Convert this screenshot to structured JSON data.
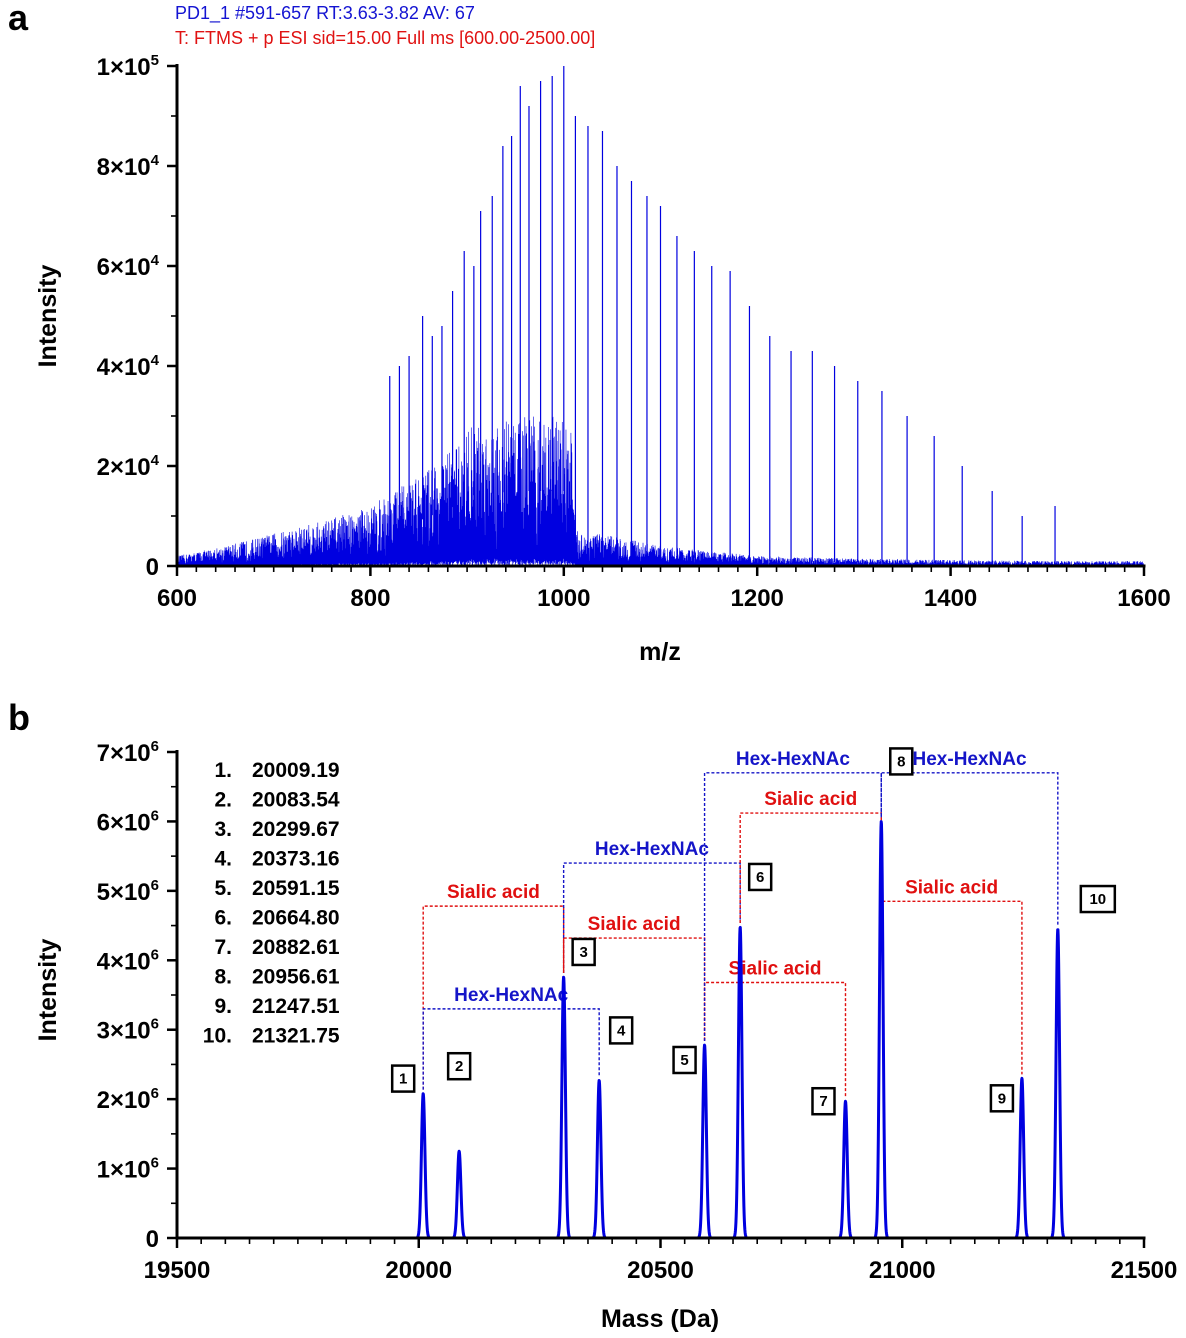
{
  "figure": {
    "panel_a_letter": "a",
    "panel_b_letter": "b"
  },
  "colors": {
    "series": "#0000e0",
    "annotation_red": "#e01010",
    "annotation_blue": "#1515c8",
    "header_blue": "#1414d2",
    "header_red": "#e01212"
  },
  "chart_data": [
    {
      "id": "panel_a",
      "type": "line",
      "header_line1": "PD1_1 #591-657 RT:3.63-3.82 AV: 67",
      "header_line2": "T: FTMS + p ESI sid=15.00 Full ms [600.00-2500.00]",
      "xlabel": "m/z",
      "ylabel": "Intensity",
      "xlim": [
        600,
        1600
      ],
      "ylim": [
        0,
        100000
      ],
      "x_ticks": [
        600,
        800,
        1000,
        1200,
        1400,
        1600
      ],
      "x_tick_labels": [
        "600",
        "800",
        "1000",
        "1200",
        "1400",
        "1600"
      ],
      "y_ticks": [
        0,
        20000,
        40000,
        60000,
        80000,
        100000
      ],
      "y_tick_mantissa": [
        "0",
        "2×10",
        "4×10",
        "6×10",
        "8×10",
        "1×10"
      ],
      "y_tick_exponent": [
        "",
        "4",
        "4",
        "4",
        "4",
        "5"
      ],
      "series": [
        {
          "name": "mass spectrum",
          "baseline_envelope": [
            [
              600,
              2000
            ],
            [
              650,
              4000
            ],
            [
              700,
              6500
            ],
            [
              750,
              9000
            ],
            [
              800,
              12000
            ],
            [
              850,
              18000
            ],
            [
              880,
              23000
            ],
            [
              898,
              25000
            ],
            [
              900,
              28000
            ],
            [
              950,
              30000
            ],
            [
              1000,
              30000
            ],
            [
              1008,
              28000
            ],
            [
              1012,
              7000
            ],
            [
              1050,
              6000
            ],
            [
              1100,
              4000
            ],
            [
              1150,
              3000
            ],
            [
              1200,
              2000
            ],
            [
              1300,
              1500
            ],
            [
              1400,
              1200
            ],
            [
              1500,
              1000
            ],
            [
              1600,
              1000
            ]
          ],
          "peaks": [
            [
              820,
              38000
            ],
            [
              830,
              40000
            ],
            [
              840,
              42000
            ],
            [
              854,
              50000
            ],
            [
              864,
              46000
            ],
            [
              874,
              48000
            ],
            [
              885,
              55000
            ],
            [
              897,
              63000
            ],
            [
              907,
              60000
            ],
            [
              914,
              71000
            ],
            [
              926,
              74000
            ],
            [
              937,
              84000
            ],
            [
              946,
              86000
            ],
            [
              955,
              96000
            ],
            [
              964,
              92000
            ],
            [
              976,
              97000
            ],
            [
              988,
              98000
            ],
            [
              1000,
              100000
            ],
            [
              1012,
              90000
            ],
            [
              1025,
              88000
            ],
            [
              1040,
              87000
            ],
            [
              1055,
              80000
            ],
            [
              1070,
              77000
            ],
            [
              1086,
              74000
            ],
            [
              1100,
              72000
            ],
            [
              1117,
              66000
            ],
            [
              1135,
              63000
            ],
            [
              1153,
              60000
            ],
            [
              1172,
              59000
            ],
            [
              1192,
              52000
            ],
            [
              1213,
              46000
            ],
            [
              1235,
              43000
            ],
            [
              1257,
              43000
            ],
            [
              1280,
              40000
            ],
            [
              1304,
              37000
            ],
            [
              1329,
              35000
            ],
            [
              1355,
              30000
            ],
            [
              1383,
              26000
            ],
            [
              1412,
              20000
            ],
            [
              1443,
              15000
            ],
            [
              1474,
              10000
            ],
            [
              1508,
              12000
            ]
          ]
        }
      ]
    },
    {
      "id": "panel_b",
      "type": "line",
      "xlabel": "Mass (Da)",
      "ylabel": "Intensity",
      "xlim": [
        19500,
        21500
      ],
      "ylim": [
        0,
        7000000
      ],
      "x_ticks": [
        19500,
        20000,
        20500,
        21000,
        21500
      ],
      "x_tick_labels": [
        "19500",
        "20000",
        "20500",
        "21000",
        "21500"
      ],
      "y_ticks": [
        0,
        1000000,
        2000000,
        3000000,
        4000000,
        5000000,
        6000000,
        7000000
      ],
      "y_tick_mantissa": [
        "0",
        "1×10",
        "2×10",
        "3×10",
        "4×10",
        "5×10",
        "6×10",
        "7×10"
      ],
      "y_tick_exponent": [
        "",
        "6",
        "6",
        "6",
        "6",
        "6",
        "6",
        "6"
      ],
      "peaks": [
        {
          "label": "1",
          "mass": 20009.19,
          "mass_text": "20009.19",
          "intensity": 2080000
        },
        {
          "label": "2",
          "mass": 20083.54,
          "mass_text": "20083.54",
          "intensity": 1250000
        },
        {
          "label": "3",
          "mass": 20299.67,
          "mass_text": "20299.67",
          "intensity": 3760000
        },
        {
          "label": "4",
          "mass": 20373.16,
          "mass_text": "20373.16",
          "intensity": 2270000
        },
        {
          "label": "5",
          "mass": 20591.15,
          "mass_text": "20591.15",
          "intensity": 2780000
        },
        {
          "label": "6",
          "mass": 20664.8,
          "mass_text": "20664.80",
          "intensity": 4480000
        },
        {
          "label": "7",
          "mass": 20882.61,
          "mass_text": "20882.61",
          "intensity": 1970000
        },
        {
          "label": "8",
          "mass": 20956.61,
          "mass_text": "20956.61",
          "intensity": 6000000
        },
        {
          "label": "9",
          "mass": 21247.51,
          "mass_text": "21247.51",
          "intensity": 2300000
        },
        {
          "label": "10",
          "mass": 21321.75,
          "mass_text": "21321.75",
          "intensity": 4450000
        }
      ],
      "annotations": [
        {
          "text": "Sialic acid",
          "from_peak": 1,
          "to_peak": 3,
          "level": 4780000,
          "color": "red"
        },
        {
          "text": "Hex-HexNAc",
          "from_peak": 1,
          "to_peak": 4,
          "level": 3300000,
          "color": "blue"
        },
        {
          "text": "Hex-HexNAc",
          "from_peak": 3,
          "to_peak": 6,
          "level": 5400000,
          "color": "blue"
        },
        {
          "text": "Sialic acid",
          "from_peak": 3,
          "to_peak": 5,
          "level": 4320000,
          "color": "red"
        },
        {
          "text": "Sialic acid",
          "from_peak": 5,
          "to_peak": 7,
          "level": 3680000,
          "color": "red"
        },
        {
          "text": "Sialic acid",
          "from_peak": 6,
          "to_peak": 8,
          "level": 6120000,
          "color": "red"
        },
        {
          "text": "Hex-HexNAc",
          "from_peak": 5,
          "to_peak": 8,
          "level": 6700000,
          "color": "blue"
        },
        {
          "text": "Hex-HexNAc",
          "from_peak": 8,
          "to_peak": 10,
          "level": 6700000,
          "color": "blue"
        },
        {
          "text": "Sialic acid",
          "from_peak": 8,
          "to_peak": 9,
          "level": 4850000,
          "color": "red"
        }
      ]
    }
  ]
}
